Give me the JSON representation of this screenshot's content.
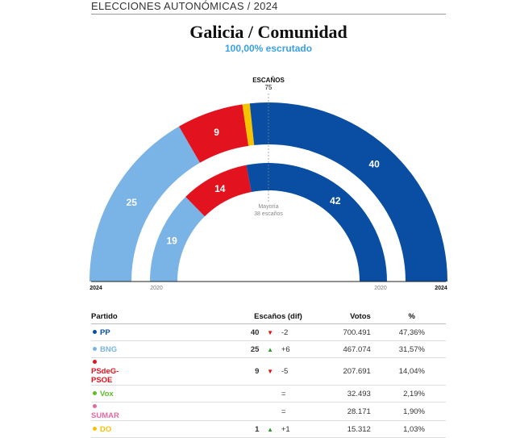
{
  "header": {
    "label": "ELECCIONES AUTONÓMICAS / 2024"
  },
  "title": "Galicia / Comunidad",
  "subtitle": "100,00% escrutado",
  "chart_data": {
    "type": "hemicycle",
    "total_label": "ESCAÑOS",
    "total_seats": 75,
    "majority_label": [
      "Mayoría",
      "38 escaños"
    ],
    "rings": [
      {
        "year": "2024",
        "seats": [
          {
            "party": "BNG",
            "value": 25,
            "label": "25"
          },
          {
            "party": "PSdeG-PSOE",
            "value": 9,
            "label": "9"
          },
          {
            "party": "DO",
            "value": 1,
            "label": ""
          },
          {
            "party": "PP",
            "value": 40,
            "label": "40"
          }
        ]
      },
      {
        "year": "2020",
        "seats": [
          {
            "party": "BNG",
            "value": 19,
            "label": "19"
          },
          {
            "party": "PSdeG-PSOE",
            "value": 14,
            "label": "14"
          },
          {
            "party": "PP",
            "value": 42,
            "label": "42"
          }
        ]
      }
    ],
    "colors": {
      "PP": "#0a4ea3",
      "BNG": "#7ab3e6",
      "PSdeG-PSOE": "#e2131f",
      "DO": "#f5c300"
    }
  },
  "table": {
    "headers": {
      "party": "Partido",
      "seats": "Escaños (dif)",
      "votes": "Votos",
      "pct": "%"
    },
    "rows": [
      {
        "party": "PP",
        "color": "#0a4ea3",
        "seats": "40",
        "arrow": "down",
        "arrow_glyph": "▼",
        "dif": "-2",
        "votes": "700.491",
        "pct": "47,36%"
      },
      {
        "party": "BNG",
        "color": "#7ab3e6",
        "seats": "25",
        "arrow": "up",
        "arrow_glyph": "▲",
        "dif": "+6",
        "votes": "467.074",
        "pct": "31,57%"
      },
      {
        "party": "PSdeG-PSOE",
        "color": "#e2131f",
        "seats": "9",
        "arrow": "down",
        "arrow_glyph": "▼",
        "dif": "-5",
        "votes": "207.691",
        "pct": "14,04%"
      },
      {
        "party": "Vox",
        "color": "#5cbf2a",
        "seats": "",
        "arrow": "",
        "arrow_glyph": "",
        "dif": "=",
        "votes": "32.493",
        "pct": "2,19%"
      },
      {
        "party": "SUMAR",
        "color": "#e06ba0",
        "seats": "",
        "arrow": "",
        "arrow_glyph": "",
        "dif": "=",
        "votes": "28.171",
        "pct": "1,90%"
      },
      {
        "party": "DO",
        "color": "#f5c300",
        "seats": "1",
        "arrow": "up",
        "arrow_glyph": "▲",
        "dif": "+1",
        "votes": "15.312",
        "pct": "1,03%"
      }
    ]
  }
}
